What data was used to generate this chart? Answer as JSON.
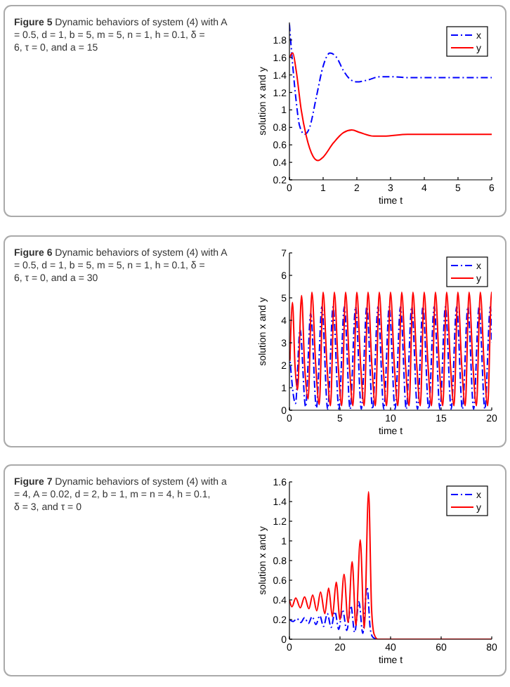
{
  "chart_data": [
    {
      "type": "line",
      "title": "Figure 5 Dynamic behaviors of system (4) with A = 0.5, d = 1, b = 5, m = 5, n = 1, h = 0.1, δ = 6, τ = 0, and a = 15",
      "xlabel": "time t",
      "ylabel": "solution x and y",
      "xlim": [
        0,
        6
      ],
      "ylim": [
        0.2,
        2
      ],
      "xticks": [
        0,
        1,
        2,
        3,
        4,
        5,
        6
      ],
      "yticks": [
        0.2,
        0.4,
        0.6,
        0.8,
        1,
        1.2,
        1.4,
        1.6,
        1.8
      ],
      "legend": "top right",
      "series": [
        {
          "name": "x",
          "color": "#0000ff",
          "line_style": "dashed",
          "x": [
            0,
            0.1,
            0.2,
            0.3,
            0.45,
            0.6,
            0.8,
            1.0,
            1.2,
            1.4,
            1.6,
            1.8,
            2.0,
            2.3,
            2.7,
            3.0,
            3.5,
            4,
            5,
            6
          ],
          "values": [
            1.98,
            1.5,
            1.1,
            0.82,
            0.72,
            0.8,
            1.15,
            1.5,
            1.65,
            1.6,
            1.45,
            1.35,
            1.32,
            1.34,
            1.38,
            1.38,
            1.37,
            1.37,
            1.37,
            1.37
          ]
        },
        {
          "name": "y",
          "color": "#ff0000",
          "line_style": "solid",
          "x": [
            0,
            0.1,
            0.2,
            0.35,
            0.5,
            0.7,
            0.85,
            1.0,
            1.3,
            1.6,
            1.85,
            2.1,
            2.5,
            2.8,
            3.5,
            4,
            6
          ],
          "values": [
            1.6,
            1.65,
            1.45,
            1.0,
            0.7,
            0.47,
            0.42,
            0.46,
            0.62,
            0.74,
            0.77,
            0.74,
            0.7,
            0.7,
            0.72,
            0.72,
            0.72
          ]
        }
      ]
    },
    {
      "type": "line",
      "title": "Figure 6 Dynamic behaviors of system (4) with A = 0.5, d = 1, b = 5, m = 5, n = 1, h = 0.1, δ = 6, τ = 0, and a = 30",
      "xlabel": "time t",
      "ylabel": "solution x and y",
      "xlim": [
        0,
        20
      ],
      "ylim": [
        0,
        7
      ],
      "xticks": [
        0,
        5,
        10,
        15,
        20
      ],
      "yticks": [
        0,
        1,
        2,
        3,
        4,
        5,
        6,
        7
      ],
      "legend": "top right",
      "series": [
        {
          "name": "x",
          "color": "#0000ff",
          "line_style": "dashed",
          "x": [
            0,
            0.6,
            1.05,
            1.6,
            2.1,
            2.67,
            3.21,
            3.78,
            4.32,
            4.89,
            5.43,
            6.0,
            6.54,
            7.11,
            7.65,
            8.22,
            8.76,
            9.33,
            9.87,
            10.44,
            10.98,
            11.55,
            12.09,
            12.66,
            13.2,
            13.77,
            14.31,
            14.88,
            15.42,
            15.99,
            16.53,
            17.1,
            17.64,
            18.21,
            18.75,
            19.32,
            19.86,
            20
          ],
          "values": [
            2.6,
            0.3,
            3.6,
            0.15,
            4.3,
            0.1,
            4.6,
            0.05,
            4.6,
            0.05,
            4.6,
            0.05,
            4.6,
            0.05,
            4.6,
            0.05,
            4.6,
            0.05,
            4.6,
            0.05,
            4.6,
            0.05,
            4.6,
            0.05,
            4.6,
            0.05,
            4.6,
            0.05,
            4.6,
            0.05,
            4.6,
            0.05,
            4.6,
            0.05,
            4.6,
            0.05,
            4.6,
            3.0
          ]
        },
        {
          "name": "y",
          "color": "#ff0000",
          "line_style": "solid",
          "x": [
            0.05,
            0.3,
            0.55,
            0.8,
            1.2,
            1.5,
            1.85,
            2.22,
            2.6,
            2.95,
            3.33,
            3.71,
            4.06,
            4.44,
            4.82,
            5.17,
            5.55,
            5.93,
            6.28,
            6.66,
            7.04,
            7.39,
            7.77,
            8.15,
            8.5,
            8.88,
            9.26,
            9.61,
            9.99,
            10.37,
            10.72,
            11.1,
            11.48,
            11.83,
            12.21,
            12.59,
            12.94,
            13.32,
            13.7,
            14.05,
            14.43,
            14.81,
            15.16,
            15.54,
            15.92,
            16.27,
            16.65,
            17.03,
            17.38,
            17.76,
            18.14,
            18.49,
            18.87,
            19.25,
            19.6,
            19.98,
            20
          ],
          "values": [
            2.2,
            4.8,
            2.0,
            0.9,
            5.1,
            2.0,
            0.5,
            5.25,
            2.0,
            0.25,
            5.25,
            2.0,
            0.2,
            5.25,
            2.0,
            0.2,
            5.25,
            2.0,
            0.2,
            5.25,
            2.0,
            0.2,
            5.25,
            2.0,
            0.2,
            5.25,
            2.0,
            0.2,
            5.25,
            2.0,
            0.2,
            5.25,
            2.0,
            0.2,
            5.25,
            2.0,
            0.2,
            5.25,
            2.0,
            0.2,
            5.25,
            2.0,
            0.2,
            5.25,
            2.0,
            0.2,
            5.25,
            2.0,
            0.2,
            5.25,
            2.0,
            0.2,
            5.25,
            2.0,
            0.2,
            5.25,
            5.1
          ]
        }
      ]
    },
    {
      "type": "line",
      "title": "Figure 7 Dynamic behaviors of system (4) with a = 4, A = 0.02, d = 2, b = 1, m = n = 4, h = 0.1, δ = 3, and τ = 0",
      "xlabel": "time t",
      "ylabel": "solution x and y",
      "xlim": [
        0,
        80
      ],
      "ylim": [
        0,
        1.6
      ],
      "xticks": [
        0,
        20,
        40,
        60,
        80
      ],
      "yticks": [
        0,
        0.2,
        0.4,
        0.6,
        0.8,
        1,
        1.2,
        1.4,
        1.6
      ],
      "legend": "top right",
      "series": [
        {
          "name": "x",
          "color": "#0000ff",
          "line_style": "dashed",
          "x": [
            0,
            1.5,
            3,
            4.5,
            6,
            7.5,
            9,
            10.5,
            12,
            13.5,
            15,
            16.5,
            18,
            19.5,
            21,
            22.7,
            24.3,
            25.8,
            27.5,
            29,
            30.7,
            32,
            33,
            35,
            80
          ],
          "values": [
            0.2,
            0.18,
            0.21,
            0.17,
            0.22,
            0.16,
            0.23,
            0.15,
            0.24,
            0.13,
            0.26,
            0.12,
            0.28,
            0.1,
            0.3,
            0.09,
            0.34,
            0.07,
            0.38,
            0.06,
            0.53,
            0.1,
            0.02,
            0,
            0
          ]
        },
        {
          "name": "y",
          "color": "#ff0000",
          "line_style": "solid",
          "x": [
            0,
            1,
            2.5,
            4.3,
            6,
            7.7,
            9.2,
            10.8,
            12.3,
            14,
            15.5,
            17,
            18.5,
            20,
            21.6,
            23.2,
            24.8,
            26.3,
            28,
            29.6,
            31.3,
            32.5,
            33.5,
            35,
            80
          ],
          "values": [
            0.4,
            0.33,
            0.42,
            0.32,
            0.43,
            0.31,
            0.45,
            0.29,
            0.48,
            0.26,
            0.52,
            0.23,
            0.58,
            0.2,
            0.66,
            0.17,
            0.79,
            0.14,
            1.01,
            0.11,
            1.5,
            0.3,
            0.05,
            0,
            0
          ]
        }
      ]
    }
  ]
}
